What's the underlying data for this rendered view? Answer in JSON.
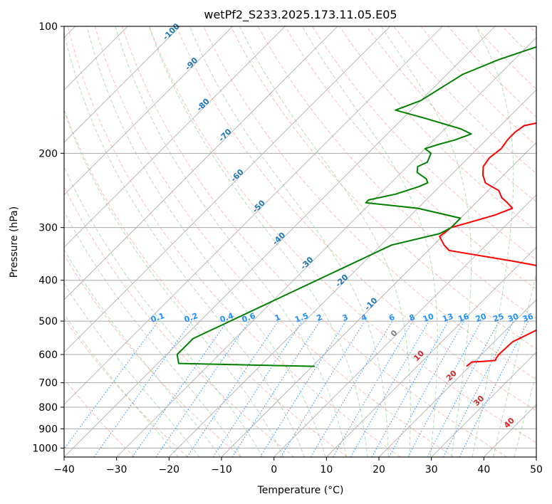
{
  "chart_data": {
    "type": "skew-t",
    "title": "wetPf2_S233.2025.173.11.05.E05",
    "xlabel": "Temperature (°C)",
    "ylabel": "Pressure (hPa)",
    "xlim": [
      -40,
      50
    ],
    "ylim": [
      1050,
      100
    ],
    "grid": true,
    "x_ticks": [
      -40,
      -30,
      -20,
      -10,
      0,
      10,
      20,
      30,
      40,
      50
    ],
    "x_tick_labels": [
      "−40",
      "−30",
      "−20",
      "−10",
      "0",
      "10",
      "20",
      "30",
      "40",
      "50"
    ],
    "y_ticks": [
      100,
      200,
      300,
      400,
      500,
      600,
      700,
      800,
      900,
      1000
    ],
    "y_tick_labels": [
      "100",
      "200",
      "300",
      "400",
      "500",
      "600",
      "700",
      "800",
      "900",
      "1000"
    ],
    "colors": {
      "temperature": "#ff0000",
      "dewpoint": "#008000",
      "isotherm_label": "#1f77b4",
      "mixing_ratio": "#1e90ff",
      "moist_adiabat_label": "#d62728",
      "dry_adiabat": "#fa8072",
      "moist_adiabat": "#2ca02c",
      "grid": "#a9a9a9"
    },
    "series": [
      {
        "key": "temperature",
        "points": [
          [
            640,
            19.4
          ],
          [
            625,
            19.6
          ],
          [
            623,
            21.5
          ],
          [
            620,
            23.8
          ],
          [
            612,
            23.5
          ],
          [
            600,
            23.3
          ],
          [
            560,
            23.5
          ],
          [
            530,
            25.5
          ],
          [
            500,
            27.5
          ],
          [
            480,
            28
          ],
          [
            460,
            30
          ],
          [
            440,
            33.5
          ],
          [
            430,
            35.5
          ],
          [
            420,
            34.5
          ],
          [
            400,
            29.5
          ],
          [
            380,
            20
          ],
          [
            360,
            8
          ],
          [
            340,
            -6
          ],
          [
            330,
            -8
          ],
          [
            315,
            -10.5
          ],
          [
            300,
            -10
          ],
          [
            290,
            -7
          ],
          [
            280,
            -4
          ],
          [
            270,
            -2
          ],
          [
            262,
            -4
          ],
          [
            255,
            -6
          ],
          [
            245,
            -8
          ],
          [
            240,
            -10
          ],
          [
            235,
            -12
          ],
          [
            225,
            -14
          ],
          [
            215,
            -15.5
          ],
          [
            205,
            -16
          ],
          [
            195,
            -15.5
          ],
          [
            185,
            -16
          ],
          [
            178,
            -16
          ],
          [
            172,
            -15.5
          ],
          [
            165,
            -10
          ],
          [
            160,
            -2
          ],
          [
            156,
            3
          ],
          [
            148,
            10
          ],
          [
            140,
            14
          ],
          [
            130,
            15
          ],
          [
            120,
            17
          ],
          [
            110,
            20
          ],
          [
            100,
            24
          ]
        ]
      },
      {
        "key": "dewpoint",
        "points": [
          [
            640,
            -9.5
          ],
          [
            630,
            -36
          ],
          [
            600,
            -38
          ],
          [
            580,
            -38
          ],
          [
            550,
            -38
          ],
          [
            330,
            -18
          ],
          [
            310,
            -11
          ],
          [
            300,
            -10
          ],
          [
            285,
            -10
          ],
          [
            270,
            -20
          ],
          [
            262,
            -31
          ],
          [
            258,
            -31
          ],
          [
            250,
            -27
          ],
          [
            240,
            -24
          ],
          [
            235,
            -23
          ],
          [
            230,
            -24
          ],
          [
            222,
            -27
          ],
          [
            215,
            -28
          ],
          [
            210,
            -27
          ],
          [
            200,
            -28
          ],
          [
            195,
            -30
          ],
          [
            190,
            -28
          ],
          [
            186,
            -26
          ],
          [
            180,
            -24
          ],
          [
            175,
            -27
          ],
          [
            165,
            -36
          ],
          [
            158,
            -43
          ],
          [
            150,
            -40
          ],
          [
            130,
            -37
          ],
          [
            120,
            -33
          ],
          [
            110,
            -27
          ],
          [
            100,
            -19
          ]
        ]
      }
    ],
    "isotherm_labels": [
      "-100",
      "-90",
      "-80",
      "-70",
      "-60",
      "-50",
      "-40",
      "-30",
      "-20",
      "-10",
      "0"
    ],
    "mixing_ratio_labels": [
      "0.1",
      "0.2",
      "0.4",
      "0.6",
      "1",
      "1.5",
      "2",
      "3",
      "4",
      "6",
      "8",
      "10",
      "13",
      "16",
      "20",
      "25",
      "30",
      "36"
    ],
    "moist_adiabat_labels": [
      "10",
      "20",
      "30",
      "40"
    ]
  }
}
